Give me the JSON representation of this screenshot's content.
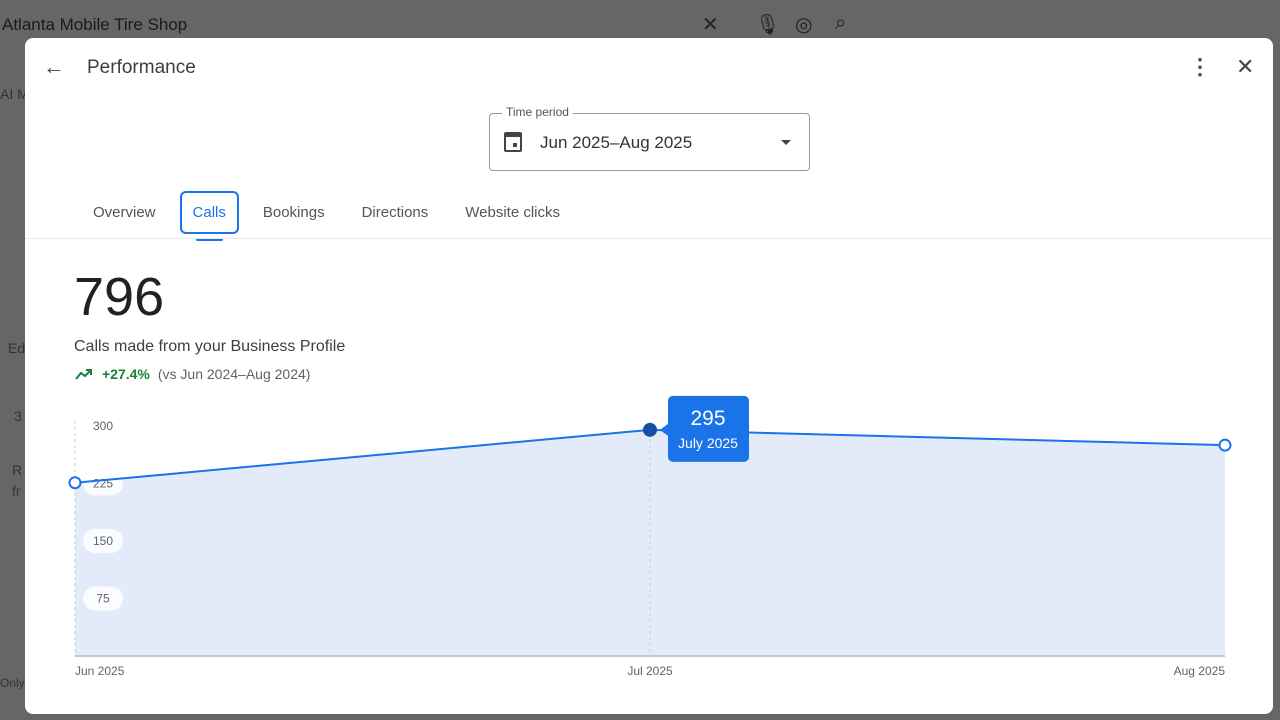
{
  "background": {
    "search_query": "Atlanta Mobile Tire Shop",
    "fragments": [
      "AI M",
      "Ed",
      "3",
      "R",
      "fr",
      "Only"
    ]
  },
  "header": {
    "title": "Performance"
  },
  "time_period": {
    "label": "Time period",
    "value": "Jun 2025–Aug 2025"
  },
  "tabs": [
    {
      "label": "Overview"
    },
    {
      "label": "Calls",
      "active": true
    },
    {
      "label": "Bookings"
    },
    {
      "label": "Directions"
    },
    {
      "label": "Website clicks"
    }
  ],
  "metric": {
    "value": "796",
    "description": "Calls made from your Business Profile",
    "change": "+27.4%",
    "comparison": "(vs Jun 2024–Aug 2024)"
  },
  "colors": {
    "accent": "#1a73e8",
    "fill": "#e3ebfb",
    "positive": "#188038"
  },
  "chart_data": {
    "type": "area",
    "categories": [
      "Jun 2025",
      "Jul 2025",
      "Aug 2025"
    ],
    "values": [
      226,
      295,
      275
    ],
    "yticks": [
      "75",
      "150",
      "225",
      "300"
    ],
    "ylim": [
      0,
      300
    ],
    "tooltip": {
      "value": "295",
      "label": "July 2025"
    }
  }
}
